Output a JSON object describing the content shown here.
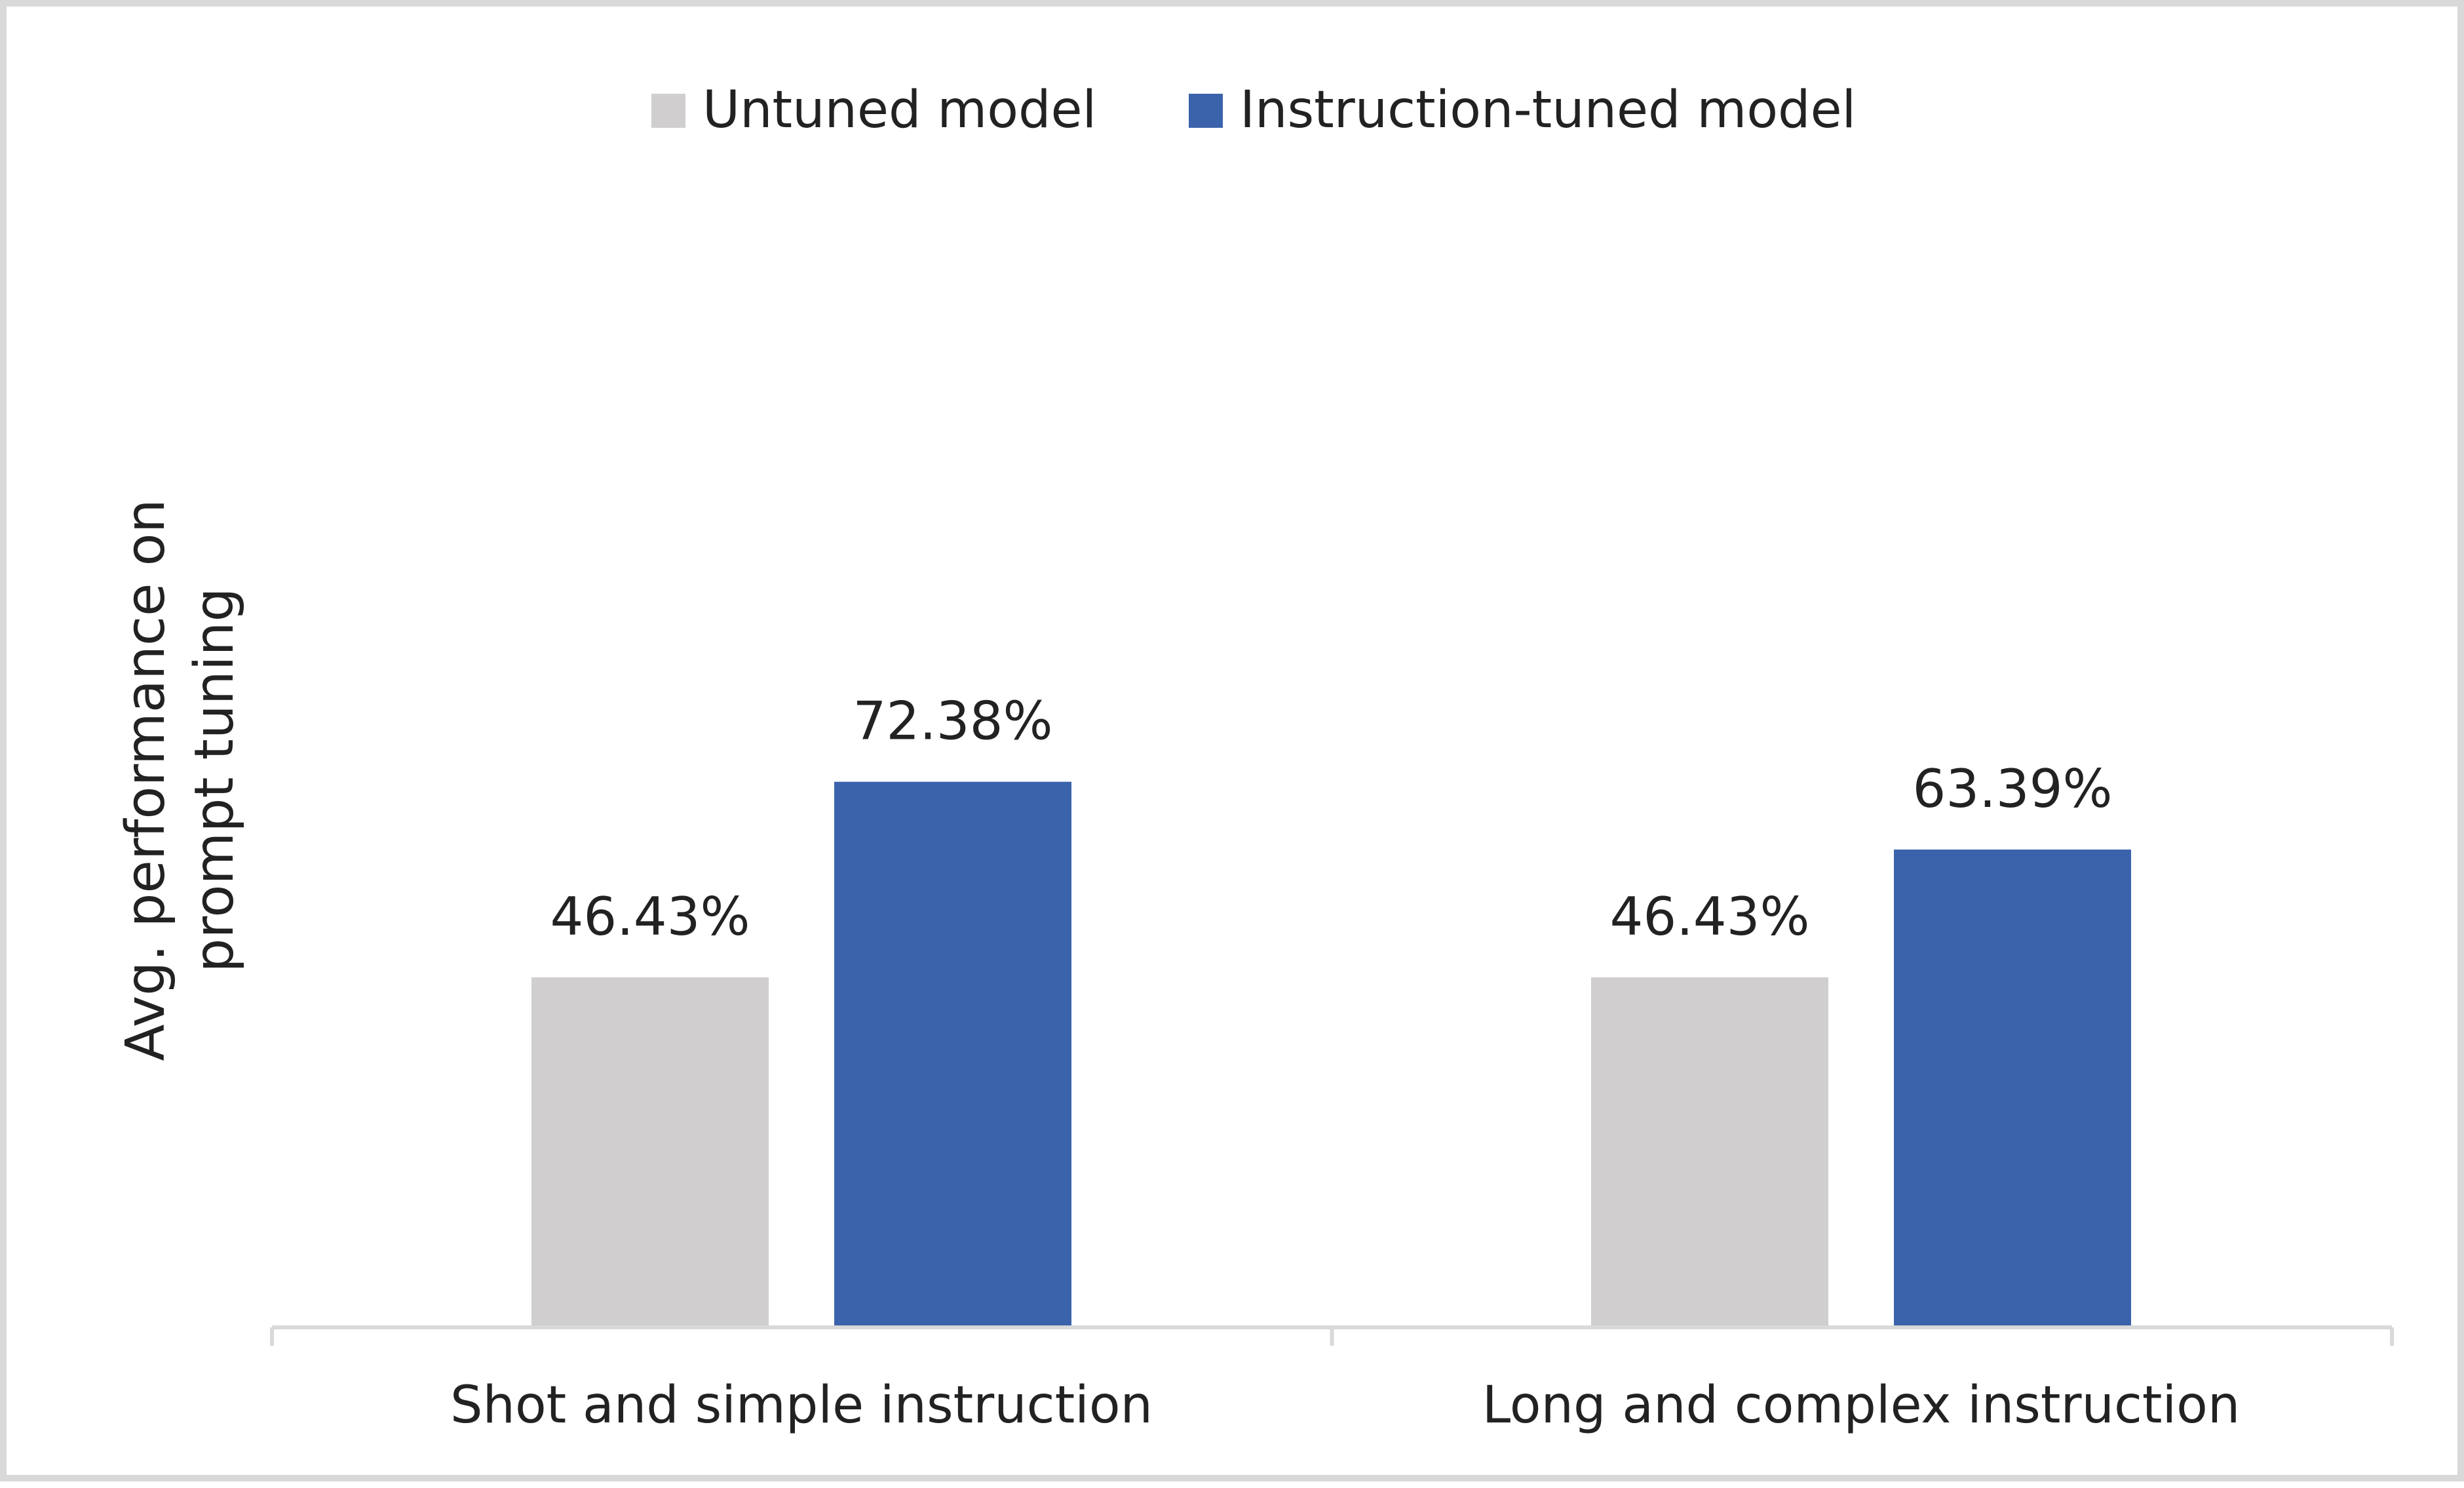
{
  "chart_data": {
    "type": "bar",
    "title": "",
    "xlabel": "",
    "ylabel": "Avg. performance on prompt tuning",
    "ylabel_lines": [
      "Avg. performance on",
      "prompt tuning"
    ],
    "categories": [
      "Shot and simple instruction",
      "Long and complex instruction"
    ],
    "series": [
      {
        "name": "Untuned model",
        "color": "#d0cece",
        "values": [
          46.43,
          46.43
        ],
        "labels": [
          "46.43%",
          "46.43%"
        ]
      },
      {
        "name": "Instruction-tuned model",
        "color": "#3a63ab",
        "values": [
          72.38,
          63.39
        ],
        "labels": [
          "72.38%",
          "63.39%"
        ]
      }
    ],
    "ylim": [
      0,
      80
    ],
    "grid": false,
    "legend_position": "top-center",
    "axis_color": "#d9d9d9"
  }
}
